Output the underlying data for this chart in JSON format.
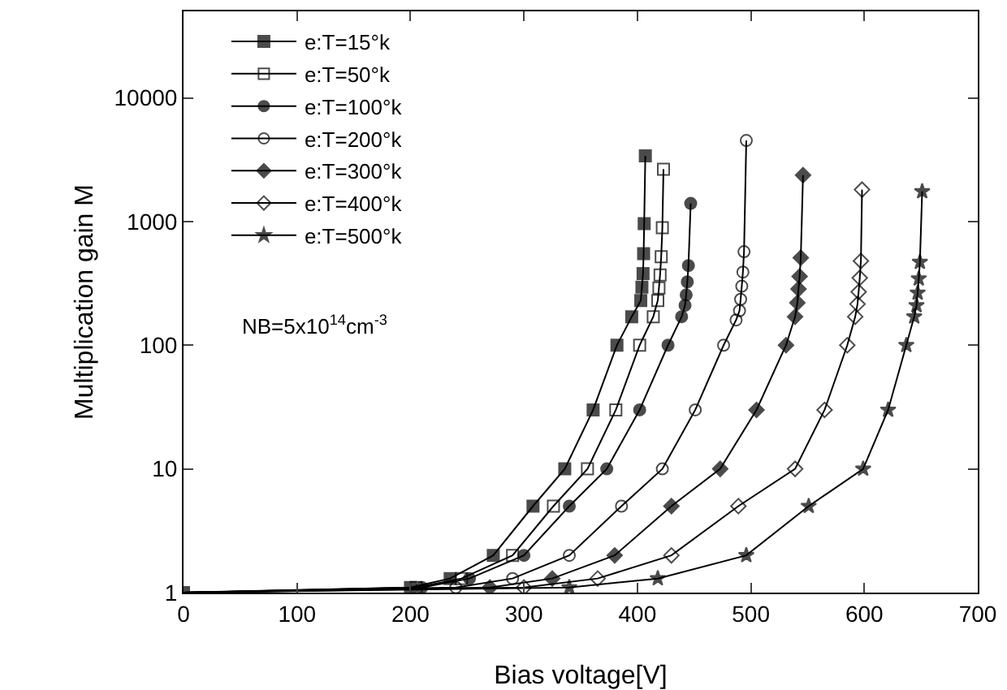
{
  "chart_data": {
    "type": "line",
    "xlabel": "Bias voltage[V]",
    "ylabel": "Multiplication gain M",
    "log": "y",
    "grid": false,
    "legend": "top left",
    "line_style": "solid",
    "xlim": [
      0,
      700
    ],
    "xticks": [
      0,
      100,
      200,
      300,
      400,
      500,
      600,
      700
    ],
    "ylim": [
      1,
      50000
    ],
    "yticks": [
      1,
      10,
      100,
      1000,
      10000
    ],
    "annotations": [
      "NB=5x10$^{14}$cm$^{-3}$"
    ],
    "series": [
      {
        "name": "e:T=15°k",
        "color": "#000000",
        "marker": "square",
        "x": [
          0,
          200,
          235,
          273,
          308,
          336,
          361,
          382,
          395,
          403,
          404,
          405,
          405.5,
          406,
          407
        ],
        "values": [
          1,
          1.1,
          1.3,
          2,
          5,
          10,
          30,
          100,
          170,
          230,
          295,
          380,
          550,
          960,
          3390
        ]
      },
      {
        "name": "e:T=50°k",
        "color": "#000000",
        "marker": "square-open",
        "x": [
          0,
          205,
          245,
          290,
          326,
          356,
          381,
          402,
          414,
          418,
          419,
          420,
          421,
          422,
          423
        ],
        "values": [
          1,
          1.1,
          1.3,
          2,
          5,
          10,
          30,
          100,
          170,
          230,
          290,
          370,
          520,
          890,
          2650
        ]
      },
      {
        "name": "e:T=100°k",
        "color": "#000000",
        "marker": "circle",
        "x": [
          0,
          210,
          252,
          300,
          340,
          373,
          402,
          427,
          439,
          442,
          443,
          444,
          445,
          447
        ],
        "values": [
          1,
          1.1,
          1.3,
          2,
          5,
          10,
          30,
          100,
          170,
          210,
          255,
          325,
          440,
          1400
        ]
      },
      {
        "name": "e:T=200°k",
        "color": "#000000",
        "marker": "circle-open",
        "x": [
          0,
          240,
          290,
          340,
          386,
          422,
          451,
          476,
          487,
          490,
          491,
          492,
          493,
          494,
          496
        ],
        "values": [
          1,
          1.1,
          1.3,
          2,
          5,
          10,
          30,
          100,
          160,
          190,
          235,
          300,
          390,
          570,
          4520
        ]
      },
      {
        "name": "e:T=300°k",
        "color": "#000000",
        "marker": "diamond",
        "x": [
          0,
          270,
          325,
          380,
          430,
          473,
          505,
          531,
          539,
          541,
          542,
          543,
          544,
          546
        ],
        "values": [
          1,
          1.1,
          1.3,
          2,
          5,
          10,
          30,
          100,
          170,
          220,
          285,
          360,
          510,
          2370
        ]
      },
      {
        "name": "e:T=400°k",
        "color": "#000000",
        "marker": "diamond-open",
        "x": [
          0,
          300,
          365,
          430,
          489,
          539,
          565,
          585,
          592,
          594,
          595,
          596,
          597,
          598
        ],
        "values": [
          1,
          1.1,
          1.3,
          2,
          5,
          10,
          30,
          100,
          170,
          215,
          270,
          350,
          480,
          1810
        ]
      },
      {
        "name": "e:T=500°k",
        "color": "#000000",
        "marker": "star",
        "x": [
          0,
          340,
          418,
          496,
          551,
          599,
          621,
          637,
          644,
          646,
          647,
          648,
          649,
          651
        ],
        "values": [
          1,
          1.1,
          1.3,
          2,
          5,
          10,
          30,
          100,
          170,
          210,
          265,
          345,
          470,
          1750
        ]
      }
    ]
  }
}
